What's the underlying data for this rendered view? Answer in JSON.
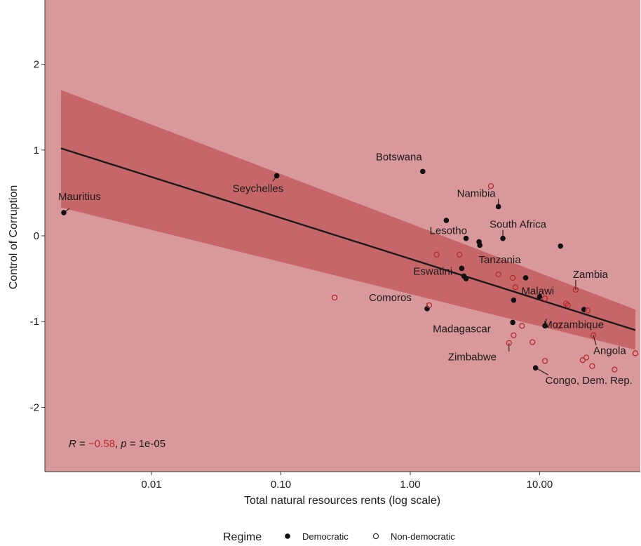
{
  "chart_data": {
    "type": "scatter",
    "xlabel": "Total natural resources rents (log scale)",
    "ylabel": "Control of Corruption",
    "x_scale": "log10",
    "xlim": [
      0.0015,
      60
    ],
    "ylim": [
      -2.75,
      2.75
    ],
    "x_ticks": [
      {
        "value": 0.01,
        "label": "0.01"
      },
      {
        "value": 0.1,
        "label": "0.10"
      },
      {
        "value": 1,
        "label": "1.00"
      },
      {
        "value": 10,
        "label": "10.00"
      }
    ],
    "y_ticks": [
      {
        "value": 2,
        "label": "2"
      },
      {
        "value": 1,
        "label": "1"
      },
      {
        "value": 0,
        "label": "0"
      },
      {
        "value": -1,
        "label": "-1"
      },
      {
        "value": -2,
        "label": "-2"
      }
    ],
    "grid": false,
    "annotation": {
      "r_symbol": "R",
      "r_eq": " = ",
      "r_value": "−0.58",
      "sep": ", ",
      "p_symbol": "p",
      "p_eq": " = ",
      "p_value": "1e-05"
    },
    "legend": {
      "title": "Regime",
      "position": "bottom",
      "entries": [
        {
          "label": "Democratic",
          "marker": "filled-circle"
        },
        {
          "label": "Non-democratic",
          "marker": "open-circle"
        }
      ]
    },
    "regression_line": {
      "x": [
        0.002,
        55
      ],
      "y": [
        1.02,
        -1.1
      ]
    },
    "confidence_band": {
      "x": [
        0.002,
        55
      ],
      "upper": [
        1.7,
        -0.86
      ],
      "lower": [
        0.33,
        -1.33
      ]
    },
    "series": [
      {
        "name": "Democratic",
        "points": [
          {
            "x": 0.0021,
            "y": 0.27,
            "label": "Mauritius"
          },
          {
            "x": 0.093,
            "y": 0.7,
            "label": "Seychelles"
          },
          {
            "x": 1.25,
            "y": 0.75,
            "label": "Botswana"
          },
          {
            "x": 4.8,
            "y": 0.34,
            "label": "Namibia"
          },
          {
            "x": 1.9,
            "y": 0.18
          },
          {
            "x": 2.7,
            "y": -0.03,
            "label": "Lesotho"
          },
          {
            "x": 3.4,
            "y": -0.07
          },
          {
            "x": 3.45,
            "y": -0.11
          },
          {
            "x": 5.2,
            "y": -0.03,
            "label": "South Africa"
          },
          {
            "x": 14.5,
            "y": -0.12
          },
          {
            "x": 2.5,
            "y": -0.38,
            "label": "Eswatini"
          },
          {
            "x": 2.6,
            "y": -0.47
          },
          {
            "x": 2.7,
            "y": -0.5
          },
          {
            "x": 7.8,
            "y": -0.49,
            "label": "Tanzania"
          },
          {
            "x": 6.3,
            "y": -0.75
          },
          {
            "x": 10.0,
            "y": -0.71,
            "label": "Malawi"
          },
          {
            "x": 1.35,
            "y": -0.85,
            "label": "Comoros"
          },
          {
            "x": 6.2,
            "y": -1.01,
            "label": "Madagascar"
          },
          {
            "x": 11.0,
            "y": -1.05,
            "label": "Mozambique"
          },
          {
            "x": 22.0,
            "y": -0.86
          },
          {
            "x": 9.3,
            "y": -1.54,
            "label": "Congo, Dem. Rep."
          }
        ]
      },
      {
        "name": "Non-democratic",
        "points": [
          {
            "x": 4.2,
            "y": 0.58
          },
          {
            "x": 1.6,
            "y": -0.22
          },
          {
            "x": 2.4,
            "y": -0.22
          },
          {
            "x": 4.8,
            "y": -0.45
          },
          {
            "x": 6.2,
            "y": -0.49
          },
          {
            "x": 6.5,
            "y": -0.6
          },
          {
            "x": 0.26,
            "y": -0.72
          },
          {
            "x": 1.4,
            "y": -0.81
          },
          {
            "x": 11.0,
            "y": -0.73
          },
          {
            "x": 16.0,
            "y": -0.79
          },
          {
            "x": 16.5,
            "y": -0.81
          },
          {
            "x": 19.0,
            "y": -0.63,
            "label": "Zambia"
          },
          {
            "x": 23.5,
            "y": -0.87
          },
          {
            "x": 6.3,
            "y": -1.16
          },
          {
            "x": 7.3,
            "y": -1.05
          },
          {
            "x": 14.0,
            "y": -1.05
          },
          {
            "x": 5.8,
            "y": -1.25,
            "label": "Zimbabwe"
          },
          {
            "x": 8.8,
            "y": -1.24
          },
          {
            "x": 11.0,
            "y": -1.46
          },
          {
            "x": 26.0,
            "y": -1.16,
            "label": "Angola"
          },
          {
            "x": 21.5,
            "y": -1.45
          },
          {
            "x": 23.0,
            "y": -1.42
          },
          {
            "x": 25.5,
            "y": -1.52
          },
          {
            "x": 38.0,
            "y": -1.56
          },
          {
            "x": 55.0,
            "y": -1.37
          }
        ]
      }
    ],
    "colors": {
      "panel": "#d9989b",
      "band": "#c25a5c",
      "line": "#1a1a1a",
      "open_marker": "#b22a2e",
      "filled_marker": "#111111",
      "r_value": "#c0282c"
    }
  }
}
